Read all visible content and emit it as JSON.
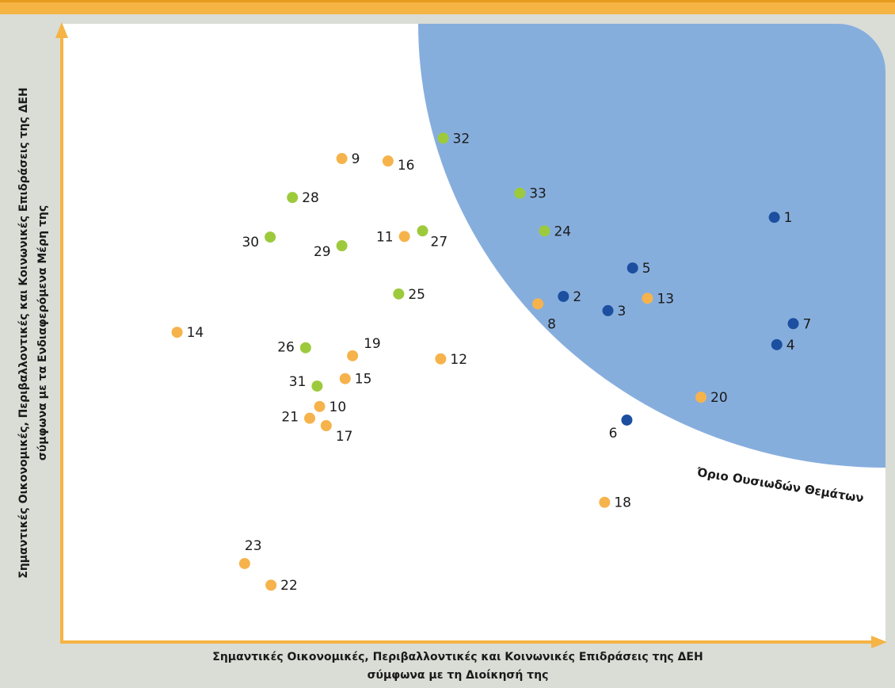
{
  "chart_data": {
    "type": "scatter",
    "xlabel": [
      "Σημαντικές Οικονομικές, Περιβαλλοντικές και Κοινωνικές Επιδράσεις της ΔΕΗ",
      "σύμφωνα με τη Διοίκησή της"
    ],
    "ylabel": [
      "Σημαντικές Οικονομικές, Περιβαλλοντικές και Κοινωνικές Επιδράσεις της ΔΕΗ",
      "σύμφωνα με τα Ενδιαφερόμενα Μέρη της"
    ],
    "region_label": "Όριο Ουσιωδών Θεμάτων",
    "xlim": [
      0,
      100
    ],
    "ylim": [
      0,
      100
    ],
    "labels": [
      "1",
      "2",
      "3",
      "4",
      "5",
      "6",
      "7",
      "8",
      "9",
      "10",
      "11",
      "12",
      "13",
      "14",
      "15",
      "16",
      "17",
      "18",
      "19",
      "20",
      "21",
      "22",
      "23",
      "24",
      "25",
      "26",
      "27",
      "28",
      "29",
      "30",
      "31",
      "32",
      "33"
    ],
    "x": [
      86.5,
      60.9,
      66.3,
      86.8,
      69.3,
      68.6,
      88.8,
      57.8,
      34.0,
      31.3,
      41.6,
      46.0,
      71.1,
      14.0,
      34.4,
      39.6,
      32.1,
      65.9,
      35.3,
      77.6,
      30.1,
      25.4,
      22.2,
      58.6,
      40.9,
      29.6,
      43.8,
      28.0,
      34.0,
      25.3,
      31.0,
      46.3,
      55.6
    ],
    "values": [
      68.7,
      55.9,
      53.6,
      48.1,
      60.5,
      35.9,
      51.5,
      54.7,
      78.2,
      38.1,
      65.6,
      45.8,
      55.6,
      50.1,
      42.6,
      77.8,
      35.0,
      22.6,
      46.3,
      39.6,
      36.2,
      9.2,
      12.7,
      66.5,
      56.3,
      47.6,
      66.5,
      71.9,
      64.1,
      65.5,
      41.4,
      81.5,
      72.6
    ],
    "colors": [
      "#1c4f9f",
      "#1c4f9f",
      "#1c4f9f",
      "#1c4f9f",
      "#1c4f9f",
      "#1c4f9f",
      "#1c4f9f",
      "#f6b34b",
      "#f6b34b",
      "#f6b34b",
      "#f6b34b",
      "#f6b34b",
      "#f6b34b",
      "#f6b34b",
      "#f6b34b",
      "#f6b34b",
      "#f6b34b",
      "#f6b34b",
      "#f6b34b",
      "#f6b34b",
      "#f6b34b",
      "#f6b34b",
      "#f6b34b",
      "#9dca3c",
      "#9dca3c",
      "#9dca3c",
      "#9dca3c",
      "#9dca3c",
      "#9dca3c",
      "#9dca3c",
      "#9dca3c",
      "#9dca3c",
      "#9dca3c"
    ]
  }
}
